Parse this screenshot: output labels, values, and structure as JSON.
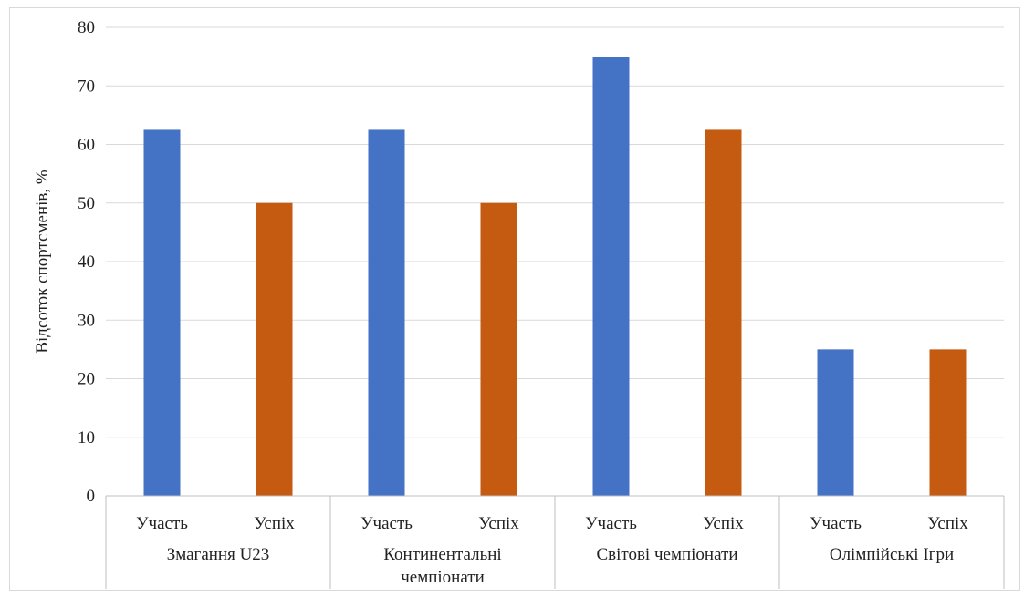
{
  "chart_data": {
    "type": "bar",
    "title": "",
    "ylabel": "Відсоток спортсменів, %",
    "xlabel": "",
    "ylim": [
      0,
      80
    ],
    "yticks": [
      0,
      10,
      20,
      30,
      40,
      50,
      60,
      70,
      80
    ],
    "grid": true,
    "legend": "none",
    "groups": [
      {
        "label_lines": [
          "Змагання U23"
        ],
        "bars": [
          {
            "label": "Участь",
            "value": 62.5,
            "color": "#4472c4"
          },
          {
            "label": "Успіх",
            "value": 50,
            "color": "#c55a11"
          }
        ]
      },
      {
        "label_lines": [
          "Континентальні",
          "чемпіонати"
        ],
        "bars": [
          {
            "label": "Участь",
            "value": 62.5,
            "color": "#4472c4"
          },
          {
            "label": "Успіх",
            "value": 50,
            "color": "#c55a11"
          }
        ]
      },
      {
        "label_lines": [
          "Світові чемпіонати"
        ],
        "bars": [
          {
            "label": "Участь",
            "value": 75,
            "color": "#4472c4"
          },
          {
            "label": "Успіх",
            "value": 62.5,
            "color": "#c55a11"
          }
        ]
      },
      {
        "label_lines": [
          "Олімпійські Ігри"
        ],
        "bars": [
          {
            "label": "Участь",
            "value": 25,
            "color": "#4472c4"
          },
          {
            "label": "Успіх",
            "value": 25,
            "color": "#c55a11"
          }
        ]
      }
    ]
  }
}
